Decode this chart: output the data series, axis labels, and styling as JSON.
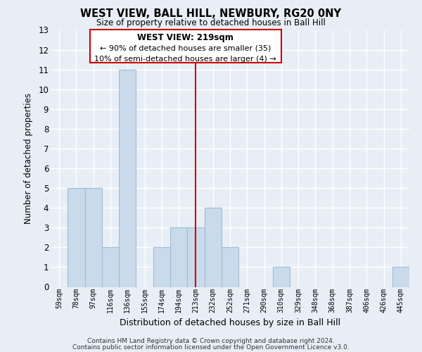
{
  "title": "WEST VIEW, BALL HILL, NEWBURY, RG20 0NY",
  "subtitle": "Size of property relative to detached houses in Ball Hill",
  "xlabel": "Distribution of detached houses by size in Ball Hill",
  "ylabel": "Number of detached properties",
  "bin_labels": [
    "59sqm",
    "78sqm",
    "97sqm",
    "116sqm",
    "136sqm",
    "155sqm",
    "174sqm",
    "194sqm",
    "213sqm",
    "232sqm",
    "252sqm",
    "271sqm",
    "290sqm",
    "310sqm",
    "329sqm",
    "348sqm",
    "368sqm",
    "387sqm",
    "406sqm",
    "426sqm",
    "445sqm"
  ],
  "bar_heights": [
    0,
    5,
    5,
    2,
    11,
    0,
    2,
    3,
    3,
    4,
    2,
    0,
    0,
    1,
    0,
    0,
    0,
    0,
    0,
    0,
    1
  ],
  "highlight_bin_index": 8,
  "bar_color": "#c9daea",
  "bar_edge_color": "#a0bdd4",
  "highlight_line_color": "#cc0000",
  "annotation_title": "WEST VIEW: 219sqm",
  "annotation_line1": "← 90% of detached houses are smaller (35)",
  "annotation_line2": "10% of semi-detached houses are larger (4) →",
  "annotation_box_color": "#cc0000",
  "ylim": [
    0,
    13
  ],
  "yticks": [
    0,
    1,
    2,
    3,
    4,
    5,
    6,
    7,
    8,
    9,
    10,
    11,
    12,
    13
  ],
  "bg_color": "#e8eef5",
  "grid_color": "#ffffff",
  "footer1": "Contains HM Land Registry data © Crown copyright and database right 2024.",
  "footer2": "Contains public sector information licensed under the Open Government Licence v3.0."
}
